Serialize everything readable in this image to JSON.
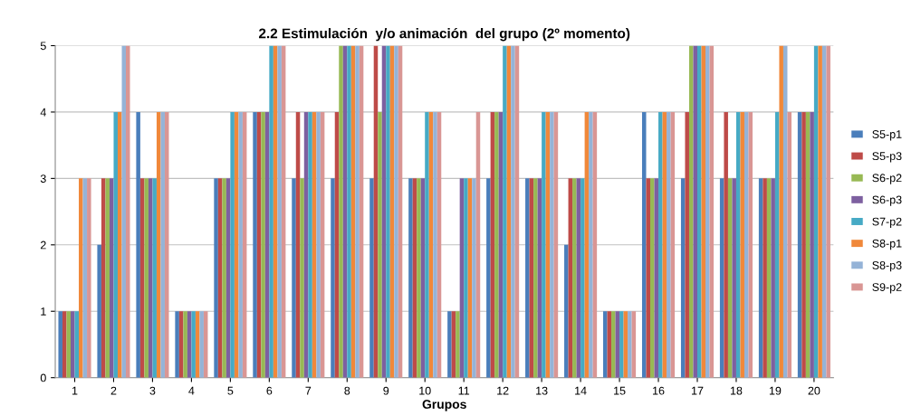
{
  "chart_data": {
    "type": "bar",
    "title": "2.2 Estimulación  y/o animación  del grupo (2º momento)",
    "xlabel": "Grupos",
    "categories": [
      "1",
      "2",
      "3",
      "4",
      "5",
      "6",
      "7",
      "8",
      "9",
      "10",
      "11",
      "12",
      "13",
      "14",
      "15",
      "16",
      "17",
      "18",
      "19",
      "20"
    ],
    "series": [
      {
        "name": "S5-p1",
        "color": "#4a7ebb",
        "values": [
          1,
          2,
          4,
          1,
          3,
          4,
          3,
          3,
          3,
          3,
          1,
          3,
          3,
          2,
          1,
          4,
          3,
          3,
          3,
          4
        ]
      },
      {
        "name": "S5-p3",
        "color": "#be4b48",
        "values": [
          1,
          3,
          3,
          1,
          3,
          4,
          4,
          4,
          5,
          3,
          1,
          4,
          3,
          3,
          1,
          3,
          4,
          4,
          3,
          4
        ]
      },
      {
        "name": "S6-p2",
        "color": "#98b954",
        "values": [
          1,
          3,
          3,
          1,
          3,
          4,
          3,
          5,
          4,
          3,
          1,
          4,
          3,
          3,
          1,
          3,
          5,
          3,
          3,
          4
        ]
      },
      {
        "name": "S6-p3",
        "color": "#7d60a0",
        "values": [
          1,
          3,
          3,
          1,
          3,
          4,
          4,
          5,
          5,
          3,
          3,
          4,
          3,
          3,
          1,
          3,
          5,
          3,
          3,
          4
        ]
      },
      {
        "name": "S7-p2",
        "color": "#46aac5",
        "values": [
          1,
          4,
          3,
          1,
          4,
          5,
          4,
          5,
          5,
          4,
          3,
          5,
          4,
          3,
          1,
          4,
          5,
          4,
          4,
          5
        ]
      },
      {
        "name": "S8-p1",
        "color": "#f0883a",
        "values": [
          3,
          4,
          4,
          1,
          4,
          5,
          4,
          5,
          5,
          4,
          3,
          5,
          4,
          4,
          1,
          4,
          5,
          4,
          5,
          5
        ]
      },
      {
        "name": "S8-p3",
        "color": "#95b3d7",
        "values": [
          3,
          5,
          4,
          1,
          4,
          5,
          4,
          5,
          5,
          4,
          3,
          5,
          4,
          4,
          1,
          4,
          5,
          4,
          5,
          5
        ]
      },
      {
        "name": "S9-p2",
        "color": "#d99694",
        "values": [
          3,
          5,
          4,
          1,
          4,
          5,
          4,
          5,
          5,
          4,
          4,
          5,
          4,
          4,
          1,
          4,
          5,
          4,
          4,
          5
        ]
      }
    ],
    "ylim": [
      0,
      5
    ],
    "yticks": [
      0,
      1,
      2,
      3,
      4,
      5
    ],
    "grid": "y",
    "legend": "right"
  }
}
